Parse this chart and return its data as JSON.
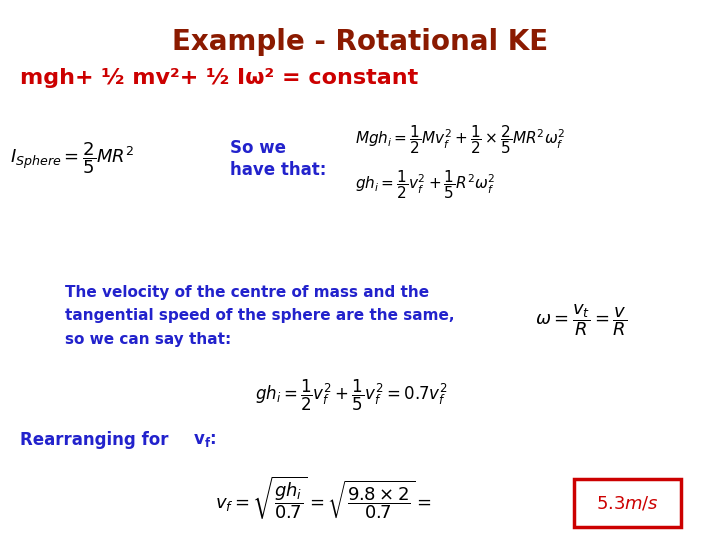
{
  "title": "Example - Rotational KE",
  "title_color": "#8B1A00",
  "title_fontsize": 20,
  "bg_color": "#FFFFFF",
  "subtitle": "mgh+ ½ mv²+ ½ Iω² = constant",
  "subtitle_color": "#CC0000",
  "subtitle_fontsize": 16,
  "text_blue": "#2222CC",
  "text_black": "#000000",
  "eq1_left": "$I_{Sphere} = \\dfrac{2}{5}MR^2$",
  "eq1_right1": "$Mgh_i = \\dfrac{1}{2}Mv_f^2 + \\dfrac{1}{2}\\times\\dfrac{2}{5}MR^2\\omega_f^2$",
  "eq1_right2": "$gh_i = \\dfrac{1}{2}v_f^2 + \\dfrac{1}{5}R^2\\omega_f^2$",
  "text_velocity": "The velocity of the centre of mass and the\ntangential speed of the sphere are the same,\nso we can say that:",
  "eq_omega": "$\\omega = \\dfrac{v_t}{R} = \\dfrac{v}{R}$",
  "eq2": "$gh_i = \\dfrac{1}{2}v_f^2 + \\dfrac{1}{5}v_f^2 = 0.7v_f^2$",
  "eq3": "$v_f = \\sqrt{\\dfrac{gh_i}{0.7}} = \\sqrt{\\dfrac{9.8\\times 2}{0.7}} =$",
  "result": "$5.3m/s$",
  "result_color": "#CC0000",
  "result_box_color": "#CC0000"
}
